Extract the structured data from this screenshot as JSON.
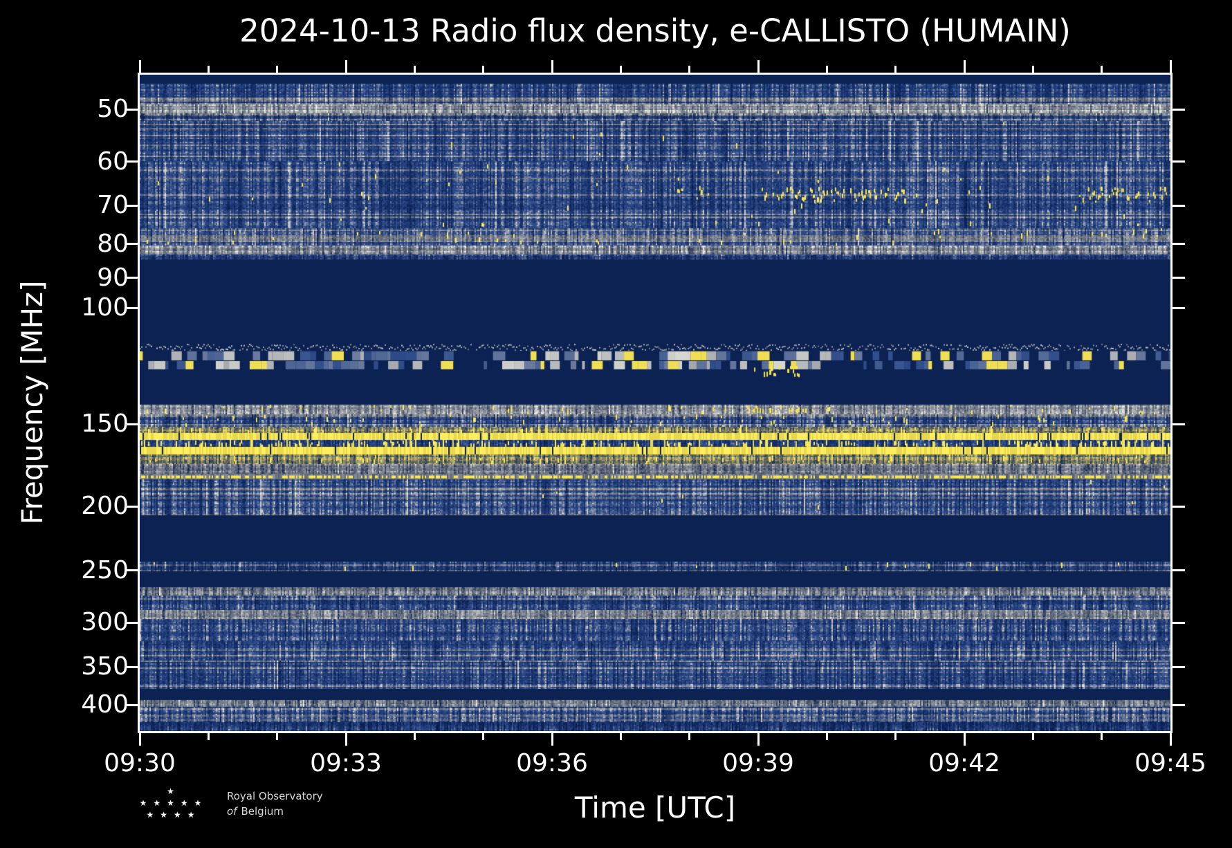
{
  "title": "2024-10-13 Radio flux density, e-CALLISTO (HUMAIN)",
  "date": "2024-10-13",
  "station": "HUMAIN",
  "instrument": "e-CALLISTO",
  "axes": {
    "x": {
      "label": "Time [UTC]",
      "start": "09:30",
      "end": "09:45",
      "duration_minutes": 15,
      "major_tick_minutes": [
        0,
        3,
        6,
        9,
        12,
        15
      ],
      "major_tick_labels": [
        "09:30",
        "09:33",
        "09:36",
        "09:39",
        "09:42",
        "09:45"
      ],
      "minor_tick_step_minutes": 1
    },
    "y": {
      "label": "Frequency [MHz]",
      "scale": "log",
      "direction": "increasing-downward",
      "tick_values": [
        50,
        60,
        70,
        80,
        90,
        100,
        150,
        200,
        250,
        300,
        350,
        400
      ],
      "tick_labels": [
        "50",
        "60",
        "70",
        "80",
        "90",
        "100",
        "150",
        "200",
        "250",
        "300",
        "350",
        "400"
      ]
    }
  },
  "colors": {
    "figure_background": "#000000",
    "quiet_navy": "#0c2253",
    "noise_blue": "#33508d",
    "pale_gray": "#9aa0aa",
    "rfi_yellow": "#f7e44c",
    "text": "#ffffff"
  },
  "logo": {
    "line1": "Royal Observatory",
    "line2_italic": "of",
    "line2_rest": "Belgium",
    "star_rows": [
      1,
      5,
      4
    ]
  },
  "chart_data": {
    "type": "heatmap",
    "subtype": "radio-spectrogram",
    "title": "2024-10-13 Radio flux density, e-CALLISTO (HUMAIN)",
    "xlabel": "Time [UTC]",
    "ylabel": "Frequency [MHz]",
    "x_range_utc": [
      "09:30",
      "09:45"
    ],
    "y_scale": "log",
    "f_min_mhz": 44.3,
    "f_max_mhz": 438.0,
    "legend": "none",
    "grid": false,
    "description": "Quiet-sun dynamic spectrum dominated by terrestrial RFI bands; no solar burst visible.",
    "bands": [
      {
        "f0": 44.3,
        "f1": 45.8,
        "style": "flat"
      },
      {
        "f0": 45.8,
        "f1": 49.2,
        "style": "noise",
        "level": 0.5,
        "gray": 0.1
      },
      {
        "f0": 49.2,
        "f1": 50.8,
        "style": "gray",
        "level": 0.62
      },
      {
        "f0": 50.8,
        "f1": 52.2,
        "style": "noise",
        "level": 0.42,
        "gray": 0.15
      },
      {
        "f0": 52.2,
        "f1": 60.0,
        "style": "noise",
        "level": 0.52,
        "gray": 0.12,
        "ys": 0.012
      },
      {
        "f0": 60.0,
        "f1": 75.8,
        "style": "noise",
        "level": 0.5,
        "gray": 0.08,
        "ys": 0.045
      },
      {
        "f0": 75.8,
        "f1": 80.6,
        "style": "noise",
        "level": 0.58,
        "gray": 0.3,
        "ys": 0.06
      },
      {
        "f0": 80.6,
        "f1": 83.0,
        "style": "gray",
        "level": 0.55
      },
      {
        "f0": 83.0,
        "f1": 84.6,
        "style": "noise",
        "level": 0.45
      },
      {
        "f0": 84.6,
        "f1": 113.4,
        "style": "flat"
      },
      {
        "f0": 113.4,
        "f1": 116.2,
        "style": "graydash",
        "level": 0.6
      },
      {
        "f0": 116.2,
        "f1": 124.2,
        "style": "blocks"
      },
      {
        "f0": 124.2,
        "f1": 140.2,
        "style": "flat"
      },
      {
        "f0": 140.2,
        "f1": 145.3,
        "style": "gray",
        "level": 0.55,
        "ys": 0.05
      },
      {
        "f0": 145.3,
        "f1": 151.7,
        "style": "noise",
        "level": 0.52,
        "gray": 0.2,
        "ys": 0.07
      },
      {
        "f0": 151.7,
        "f1": 154.8,
        "style": "yhaze",
        "level": 0.5
      },
      {
        "f0": 154.8,
        "f1": 158.8,
        "style": "yline",
        "gaps": 0.05,
        "whiskers": 0.06
      },
      {
        "f0": 158.8,
        "f1": 162.7,
        "style": "noise",
        "level": 0.5,
        "ys": 0.12
      },
      {
        "f0": 162.7,
        "f1": 167.0,
        "style": "yline",
        "gaps": 0.025,
        "whiskers": 0.18
      },
      {
        "f0": 167.0,
        "f1": 172.7,
        "style": "yhaze",
        "level": 0.45
      },
      {
        "f0": 172.7,
        "f1": 178.6,
        "style": "gray",
        "level": 0.5
      },
      {
        "f0": 178.6,
        "f1": 182.0,
        "style": "ydots",
        "level": 0.45
      },
      {
        "f0": 182.0,
        "f1": 206.3,
        "style": "noise",
        "level": 0.52,
        "gray": 0.18,
        "ys": 0.02
      },
      {
        "f0": 206.3,
        "f1": 243.0,
        "style": "flat"
      },
      {
        "f0": 243.0,
        "f1": 251.0,
        "style": "noise",
        "level": 0.45,
        "gray": 0.15,
        "ys": 0.008
      },
      {
        "f0": 251.0,
        "f1": 265.5,
        "style": "flat"
      },
      {
        "f0": 265.5,
        "f1": 273.0,
        "style": "gray",
        "level": 0.45
      },
      {
        "f0": 273.0,
        "f1": 287.5,
        "style": "noise",
        "level": 0.5,
        "gray": 0.12
      },
      {
        "f0": 287.5,
        "f1": 296.5,
        "style": "gray",
        "level": 0.52
      },
      {
        "f0": 296.5,
        "f1": 320.5,
        "style": "noise",
        "level": 0.52,
        "gray": 0.1
      },
      {
        "f0": 320.5,
        "f1": 343.0,
        "style": "noise",
        "level": 0.5,
        "gray": 0.3
      },
      {
        "f0": 343.0,
        "f1": 378.5,
        "style": "noise",
        "level": 0.52,
        "gray": 0.22
      },
      {
        "f0": 378.5,
        "f1": 393.5,
        "style": "flat"
      },
      {
        "f0": 393.5,
        "f1": 403.0,
        "style": "gray",
        "level": 0.45
      },
      {
        "f0": 403.0,
        "f1": 424.5,
        "style": "noise",
        "level": 0.52,
        "gray": 0.15
      },
      {
        "f0": 424.5,
        "f1": 438.0,
        "style": "noise",
        "level": 0.35,
        "gray": 0.1
      }
    ],
    "hotspots": [
      {
        "f0": 65.5,
        "f1": 69.5,
        "t0": 9.05,
        "t1": 11.2,
        "density": 0.55
      },
      {
        "f0": 65.5,
        "f1": 69.5,
        "t0": 13.7,
        "t1": 15.0,
        "density": 0.4
      },
      {
        "f0": 64.0,
        "f1": 69.0,
        "t0": 7.8,
        "t1": 8.4,
        "density": 0.22
      },
      {
        "f0": 122.0,
        "f1": 127.5,
        "t0": 8.9,
        "t1": 9.65,
        "density": 0.5
      },
      {
        "f0": 140.5,
        "f1": 145.0,
        "t0": 8.8,
        "t1": 9.7,
        "density": 0.5
      }
    ]
  }
}
